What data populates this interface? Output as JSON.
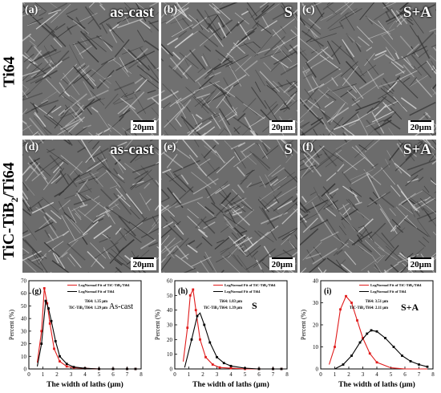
{
  "row_labels": {
    "top": "Ti64",
    "bottom_main": "TiC-TiB",
    "bottom_sub": "2",
    "bottom_tail": "/Ti64"
  },
  "scale_bar": "20μm",
  "micrographs": [
    {
      "label": "(a)",
      "condition": "as-cast"
    },
    {
      "label": "(b)",
      "condition": "S"
    },
    {
      "label": "(c)",
      "condition": "S+A"
    },
    {
      "label": "(d)",
      "condition": "as-cast"
    },
    {
      "label": "(e)",
      "condition": "S"
    },
    {
      "label": "(f)",
      "condition": "S+A"
    }
  ],
  "colors": {
    "tic_tib2": "#e01b1b",
    "ti64": "#000000"
  },
  "chart_data": [
    {
      "type": "line",
      "panel": "(g)",
      "tag": "As-cast",
      "xlabel": "The width of laths (μm)",
      "ylabel": "Percent (%)",
      "xlim": [
        0,
        8
      ],
      "ylim": [
        0,
        70
      ],
      "xticks": [
        0,
        1,
        2,
        3,
        4,
        5,
        6,
        7,
        8
      ],
      "yticks": [
        0,
        10,
        20,
        30,
        40,
        50,
        60,
        70
      ],
      "legend": [
        "LogNormal Fit of TiC-TiB₂/Ti64",
        "LogNormal Fit of Ti64"
      ],
      "note_lines": [
        "Ti64: 1.35 μm",
        "TiC-TiB₂/Ti64: 1.29 μm"
      ],
      "series": [
        {
          "name": "LogNormal Fit of TiC-TiB₂/Ti64",
          "color": "#e01b1b",
          "points": [
            [
              0.6,
              5
            ],
            [
              0.9,
              30
            ],
            [
              1.1,
              64
            ],
            [
              1.3,
              52
            ],
            [
              1.5,
              36
            ],
            [
              1.8,
              16
            ],
            [
              2.2,
              6
            ],
            [
              2.7,
              2
            ],
            [
              3.2,
              1
            ],
            [
              4,
              0.5
            ],
            [
              5,
              0
            ],
            [
              6,
              0
            ],
            [
              7,
              0
            ],
            [
              7.6,
              0
            ]
          ],
          "markers": [
            [
              0.9,
              30
            ],
            [
              1.1,
              64
            ],
            [
              1.3,
              52
            ],
            [
              1.5,
              36
            ],
            [
              1.8,
              16
            ],
            [
              2.2,
              6
            ],
            [
              2.7,
              2
            ],
            [
              3.2,
              1
            ],
            [
              4,
              0.5
            ],
            [
              5,
              0
            ],
            [
              6,
              0
            ],
            [
              7,
              0
            ],
            [
              7.6,
              0
            ]
          ]
        },
        {
          "name": "LogNormal Fit of Ti64",
          "color": "#000000",
          "points": [
            [
              0.6,
              2
            ],
            [
              0.9,
              20
            ],
            [
              1.2,
              54
            ],
            [
              1.4,
              48
            ],
            [
              1.6,
              38
            ],
            [
              1.9,
              22
            ],
            [
              2.2,
              10
            ],
            [
              2.7,
              4
            ],
            [
              3.2,
              1.5
            ],
            [
              4,
              0.5
            ],
            [
              5,
              0
            ],
            [
              6,
              0
            ],
            [
              7,
              0
            ],
            [
              7.6,
              0
            ]
          ],
          "markers": [
            [
              0.9,
              20
            ],
            [
              1.2,
              54
            ],
            [
              1.4,
              48
            ],
            [
              1.6,
              38
            ],
            [
              1.9,
              22
            ],
            [
              2.2,
              10
            ],
            [
              2.7,
              4
            ],
            [
              3.2,
              1.5
            ],
            [
              4,
              0.5
            ],
            [
              5,
              0
            ],
            [
              6,
              0
            ],
            [
              7,
              0
            ],
            [
              7.6,
              0
            ]
          ]
        }
      ]
    },
    {
      "type": "line",
      "panel": "(h)",
      "tag": "S",
      "xlabel": "The width of laths (μm)",
      "ylabel": "Percent (%)",
      "xlim": [
        0,
        8
      ],
      "ylim": [
        0,
        60
      ],
      "xticks": [
        0,
        1,
        2,
        3,
        4,
        5,
        6,
        7,
        8
      ],
      "yticks": [
        0,
        10,
        20,
        30,
        40,
        50,
        60
      ],
      "legend": [
        "LogNormal Fit of TiC-TiB₂/Ti64",
        "LogNormal Fit of Ti64"
      ],
      "note_lines": [
        "Ti64: 1.83 μm",
        "TiC-TiB₂/Ti64: 1.39 μm"
      ],
      "series": [
        {
          "name": "LogNormal Fit of TiC-TiB₂/Ti64",
          "color": "#e01b1b",
          "points": [
            [
              0.6,
              5
            ],
            [
              0.9,
              28
            ],
            [
              1.1,
              50
            ],
            [
              1.3,
              54
            ],
            [
              1.5,
              40
            ],
            [
              1.8,
              20
            ],
            [
              2.2,
              8
            ],
            [
              2.7,
              3
            ],
            [
              3.2,
              1
            ],
            [
              4,
              0.5
            ],
            [
              5,
              0
            ],
            [
              6,
              0
            ],
            [
              7,
              0
            ],
            [
              7.6,
              0
            ]
          ],
          "markers": [
            [
              0.9,
              28
            ],
            [
              1.1,
              50
            ],
            [
              1.3,
              54
            ],
            [
              1.5,
              40
            ],
            [
              1.8,
              20
            ],
            [
              2.2,
              8
            ],
            [
              2.7,
              3
            ],
            [
              3.2,
              1
            ],
            [
              4,
              0.5
            ],
            [
              5,
              0
            ],
            [
              6,
              0
            ],
            [
              7,
              0
            ],
            [
              7.6,
              0
            ]
          ]
        },
        {
          "name": "LogNormal Fit of Ti64",
          "color": "#000000",
          "points": [
            [
              0.7,
              1
            ],
            [
              1.2,
              20
            ],
            [
              1.6,
              36
            ],
            [
              1.8,
              38
            ],
            [
              2.1,
              30
            ],
            [
              2.5,
              18
            ],
            [
              3,
              8
            ],
            [
              3.5,
              4
            ],
            [
              4,
              2
            ],
            [
              5,
              0.5
            ],
            [
              6,
              0
            ],
            [
              7,
              0
            ],
            [
              7.6,
              0
            ]
          ],
          "markers": [
            [
              1.2,
              20
            ],
            [
              1.6,
              36
            ],
            [
              2.1,
              30
            ],
            [
              2.5,
              18
            ],
            [
              3,
              8
            ],
            [
              3.5,
              4
            ],
            [
              4,
              2
            ],
            [
              5,
              0.5
            ],
            [
              6,
              0
            ],
            [
              7,
              0
            ],
            [
              7.6,
              0
            ]
          ]
        }
      ]
    },
    {
      "type": "line",
      "panel": "(i)",
      "tag": "S+A",
      "xlabel": "The width of laths (μm)",
      "ylabel": "Percent (%)",
      "xlim": [
        0,
        8
      ],
      "ylim": [
        0,
        40
      ],
      "xticks": [
        0,
        1,
        2,
        3,
        4,
        5,
        6,
        7,
        8
      ],
      "yticks": [
        0,
        10,
        20,
        30,
        40
      ],
      "legend": [
        "LogNormal Fit of TiC-TiB₂/Ti64",
        "LogNormal Fit of Ti64"
      ],
      "note_lines": [
        "Ti64: 3.51 μm",
        "TiC-TiB₂/Ti64: 2.11 μm"
      ],
      "series": [
        {
          "name": "LogNormal Fit of TiC-TiB₂/Ti64",
          "color": "#e01b1b",
          "points": [
            [
              0.6,
              2
            ],
            [
              1,
              10
            ],
            [
              1.4,
              27
            ],
            [
              1.8,
              33
            ],
            [
              2.2,
              30
            ],
            [
              2.6,
              22
            ],
            [
              3,
              14
            ],
            [
              3.5,
              7
            ],
            [
              4,
              3
            ],
            [
              5,
              0.5
            ],
            [
              6,
              0
            ],
            [
              7,
              0
            ],
            [
              7.6,
              0
            ]
          ],
          "markers": [
            [
              1,
              10
            ],
            [
              1.4,
              27
            ],
            [
              1.8,
              33
            ],
            [
              2.2,
              30
            ],
            [
              2.6,
              22
            ],
            [
              3,
              14
            ],
            [
              3.5,
              7
            ],
            [
              4,
              3
            ]
          ]
        },
        {
          "name": "LogNormal Fit of Ti64",
          "color": "#000000",
          "points": [
            [
              1,
              0
            ],
            [
              1.6,
              2
            ],
            [
              2.2,
              6
            ],
            [
              2.8,
              12
            ],
            [
              3.3,
              16
            ],
            [
              3.6,
              17.5
            ],
            [
              4,
              17
            ],
            [
              4.6,
              14
            ],
            [
              5.2,
              10
            ],
            [
              5.8,
              6
            ],
            [
              6.4,
              3.5
            ],
            [
              7,
              2
            ],
            [
              7.6,
              1
            ]
          ],
          "markers": [
            [
              1.6,
              2
            ],
            [
              2.2,
              6
            ],
            [
              2.8,
              12
            ],
            [
              3.3,
              16
            ],
            [
              3.6,
              17.5
            ],
            [
              4,
              17
            ],
            [
              4.6,
              14
            ],
            [
              5.2,
              10
            ],
            [
              5.8,
              6
            ],
            [
              6.4,
              3.5
            ],
            [
              7,
              2
            ],
            [
              7.6,
              1
            ]
          ]
        }
      ]
    }
  ]
}
